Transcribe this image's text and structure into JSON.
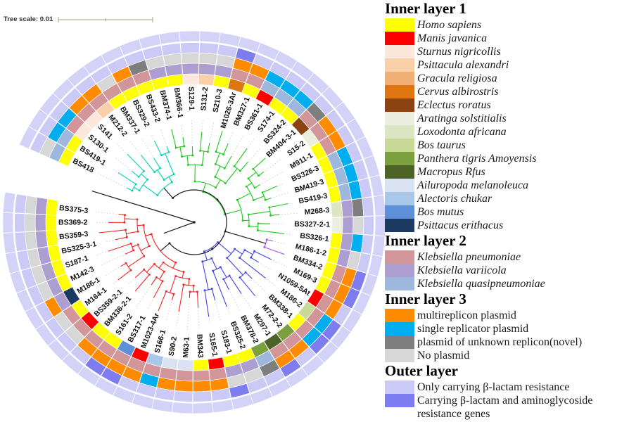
{
  "tree_scale": {
    "label": "Tree scale: 0.01"
  },
  "legend": {
    "sections": [
      {
        "title": "Inner layer 1",
        "italic": true,
        "items": [
          {
            "label": "Homo sapiens",
            "color": "#FFFF00"
          },
          {
            "label": "Manis javanica",
            "color": "#FF0000"
          },
          {
            "label": "Sturnus nigricollis",
            "color": "#FBE8DB"
          },
          {
            "label": "Psittacula alexandri",
            "color": "#FAD0A8"
          },
          {
            "label": "Gracula religiosa",
            "color": "#F1AF76"
          },
          {
            "label": "Cervus albirostris",
            "color": "#DE7511"
          },
          {
            "label": "Eclectus roratus",
            "color": "#8C4311"
          },
          {
            "label": "Aratinga solstitialis",
            "color": "#ECEFDF"
          },
          {
            "label": "Loxodonta africana",
            "color": "#DCE6C3"
          },
          {
            "label": "Bos taurus",
            "color": "#C8D998"
          },
          {
            "label": "Panthera tigris Amoyensis",
            "color": "#7C9F3F"
          },
          {
            "label": "Macropus Rfus",
            "color": "#4C6227"
          },
          {
            "label": "Ailuropoda melanoleuca",
            "color": "#DAE3F1"
          },
          {
            "label": "Alectoris chukar",
            "color": "#A9C7E9"
          },
          {
            "label": "Bos mutus",
            "color": "#5D90D9"
          },
          {
            "label": "Psittacus erithacus",
            "color": "#1D3A63"
          }
        ]
      },
      {
        "title": "Inner layer 2",
        "italic": true,
        "items": [
          {
            "label": "Klebsiella pneumoniae",
            "color": "#D29599"
          },
          {
            "label": "Klebsiella variicola",
            "color": "#AC9ED1"
          },
          {
            "label": "Klebsiella quasipneumoniae",
            "color": "#9EB8DD"
          }
        ]
      },
      {
        "title": "Inner layer 3",
        "italic": false,
        "items": [
          {
            "label": "multireplicon plasmid",
            "color": "#FF8C00"
          },
          {
            "label": "single replicator plasmid",
            "color": "#00AEEF"
          },
          {
            "label": "plasmid of unknown replicon(novel)",
            "color": "#7E7E7E"
          },
          {
            "label": "No plasmid",
            "color": "#D7D7D7"
          }
        ]
      },
      {
        "title": "Outer layer",
        "italic": false,
        "items": [
          {
            "label": "Only carrying β-lactam resistance",
            "color": "#CBCAF7"
          },
          {
            "label": "Carrying β-lactam and aminoglycoside resistance genes",
            "color": "#7D7DF0"
          }
        ]
      }
    ]
  },
  "codes": {
    "hosts": {
      "HS": "Homo sapiens",
      "MJ": "Manis javanica",
      "SN": "Sturnus nigricollis",
      "PA": "Psittacula alexandri",
      "GR": "Gracula religiosa",
      "CA": "Cervus albirostris",
      "ER": "Eclectus roratus",
      "AS": "Aratinga solstitialis",
      "LA": "Loxodonta africana",
      "BT": "Bos taurus",
      "PT": "Panthera tigris Amoyensis",
      "MR": "Macropus Rfus",
      "AM": "Ailuropoda melanoleuca",
      "AC": "Alectoris chukar",
      "BM": "Bos mutus",
      "PE": "Psittacus erithacus"
    },
    "species": {
      "KP": "Klebsiella pneumoniae",
      "KV": "Klebsiella variicola",
      "KQ": "Klebsiella quasipneumoniae"
    },
    "plasmids": {
      "MU": "multireplicon plasmid",
      "SI": "single replicator plasmid",
      "UN": "plasmid of unknown replicon(novel)",
      "NO": "No plasmid"
    },
    "outer": {
      "L": "Only carrying β-lactam resistance",
      "D": "Carrying β-lactam and aminoglycoside resistance genes"
    }
  },
  "tree": {
    "ring5_color": "#D3D3F8",
    "clade_colors": {
      "teal": "#00D2B4",
      "green": "#1EC81E",
      "purple": "#B44FE0",
      "blue": "#4040E8",
      "red": "#F02424",
      "backbone": "#1a1a1a"
    },
    "clades": [
      {
        "name": "teal",
        "from": 0,
        "to": 7
      },
      {
        "name": "green",
        "from": 8,
        "to": 26
      },
      {
        "name": "purple",
        "from": 27,
        "to": 28
      },
      {
        "name": "blue",
        "from": 29,
        "to": 38
      },
      {
        "name": "red",
        "from": 39,
        "to": 55
      }
    ],
    "leaves": [
      {
        "n": "BS418",
        "c": "teal",
        "h": "HS",
        "s": "KQ",
        "p": "NO",
        "o": "L"
      },
      {
        "n": "BS419-1",
        "c": "teal",
        "h": "HS",
        "s": "KQ",
        "p": "SI",
        "o": "L"
      },
      {
        "n": "S130-1",
        "c": "teal",
        "h": "SN",
        "s": "KP",
        "p": "SI",
        "o": "L"
      },
      {
        "n": "S141",
        "c": "teal",
        "h": "SN",
        "s": "KP",
        "p": "MU",
        "o": "L"
      },
      {
        "n": "M212-2",
        "c": "teal",
        "h": "PA",
        "s": "KP",
        "p": "MU",
        "o": "L"
      },
      {
        "n": "BM337-1",
        "c": "teal",
        "h": "HS",
        "s": "KP",
        "p": "NO",
        "o": "L"
      },
      {
        "n": "BS329-2",
        "c": "teal",
        "h": "HS",
        "s": "KP",
        "p": "MU",
        "o": "L"
      },
      {
        "n": "BS433-2",
        "c": "teal",
        "h": "HS",
        "s": "KP",
        "p": "UN",
        "o": "L"
      },
      {
        "n": "BM374-1",
        "c": "green",
        "h": "HS",
        "s": "KV",
        "p": "NO",
        "o": "L"
      },
      {
        "n": "BM366-1",
        "c": "green",
        "h": "HS",
        "s": "KV",
        "p": "NO",
        "o": "L"
      },
      {
        "n": "S129-1",
        "c": "green",
        "h": "SN",
        "s": "KV",
        "p": "NO",
        "o": "L"
      },
      {
        "n": "S131-2",
        "c": "green",
        "h": "PA",
        "s": "KV",
        "p": "NO",
        "o": "L"
      },
      {
        "n": "S210-3",
        "c": "green",
        "h": "HS",
        "s": "KV",
        "p": "NO",
        "o": "L"
      },
      {
        "n": "M1026-3Ar",
        "c": "green",
        "h": "CA",
        "s": "KP",
        "p": "MU",
        "o": "D"
      },
      {
        "n": "BM327-1",
        "c": "green",
        "h": "HS",
        "s": "KP",
        "p": "MU",
        "o": "L"
      },
      {
        "n": "BS361-1",
        "c": "green",
        "h": "MJ",
        "s": "KQ",
        "p": "SI",
        "o": "L"
      },
      {
        "n": "S174-1",
        "c": "green",
        "h": "HS",
        "s": "KQ",
        "p": "SI",
        "o": "L"
      },
      {
        "n": "BS324-2",
        "c": "green",
        "h": "HS",
        "s": "KQ",
        "p": "SI",
        "o": "L"
      },
      {
        "n": "BM404-3-1",
        "c": "green",
        "h": "ER",
        "s": "KP",
        "p": "UN",
        "o": "L"
      },
      {
        "n": "S15-2",
        "c": "green",
        "h": "AS",
        "s": "KP",
        "p": "MU",
        "o": "L"
      },
      {
        "n": "M911-1",
        "c": "green",
        "h": "HS",
        "s": "KP",
        "p": "MU",
        "o": "L"
      },
      {
        "n": "BS326-3",
        "c": "green",
        "h": "HS",
        "s": "KQ",
        "p": "SI",
        "o": "L"
      },
      {
        "n": "BM419-3",
        "c": "green",
        "h": "HS",
        "s": "KQ",
        "p": "SI",
        "o": "L"
      },
      {
        "n": "BS419-3",
        "c": "green",
        "h": "HS",
        "s": "KQ",
        "p": "SI",
        "o": "L"
      },
      {
        "n": "M268-3",
        "c": "green",
        "h": "LA",
        "s": "KV",
        "p": "UN",
        "o": "L"
      },
      {
        "n": "BS327-2-1",
        "c": "green",
        "h": "AS",
        "s": "KV",
        "p": "NO",
        "o": "L"
      },
      {
        "n": "BS326-1",
        "c": "green",
        "h": "HS",
        "s": "KV",
        "p": "SI",
        "o": "L"
      },
      {
        "n": "M186-1-2",
        "c": "purple",
        "h": "HS",
        "s": "KV",
        "p": "NO",
        "o": "L"
      },
      {
        "n": "BM334-2",
        "c": "purple",
        "h": "HS",
        "s": "KP",
        "p": "MU",
        "o": "D"
      },
      {
        "n": "M169-3",
        "c": "blue",
        "h": "HS",
        "s": "KP",
        "p": "MU",
        "o": "D"
      },
      {
        "n": "N1059-5At",
        "c": "blue",
        "h": "MJ",
        "s": "KP",
        "p": "MU",
        "o": "L"
      },
      {
        "n": "M186-2",
        "c": "blue",
        "h": "BT",
        "s": "KP",
        "p": "SI",
        "o": "D"
      },
      {
        "n": "BM338-1",
        "c": "blue",
        "h": "HS",
        "s": "KP",
        "p": "SI",
        "o": "D"
      },
      {
        "n": "M72-2-2",
        "c": "blue",
        "h": "PT",
        "s": "KP",
        "p": "MU",
        "o": "L"
      },
      {
        "n": "M297-1",
        "c": "blue",
        "h": "MR",
        "s": "KP",
        "p": "MU",
        "o": "D"
      },
      {
        "n": "BM378-2",
        "c": "blue",
        "h": "PT",
        "s": "KQ",
        "p": "UN",
        "o": "L"
      },
      {
        "n": "BS325-2",
        "c": "blue",
        "h": "HS",
        "s": "KV",
        "p": "NO",
        "o": "L"
      },
      {
        "n": "S183-1",
        "c": "blue",
        "h": "HS",
        "s": "KV",
        "p": "NO",
        "o": "D"
      },
      {
        "n": "S165-1",
        "c": "blue",
        "h": "MJ",
        "s": "KP",
        "p": "MU",
        "o": "L"
      },
      {
        "n": "BM343",
        "c": "red",
        "h": "HS",
        "s": "KP",
        "p": "MU",
        "o": "L"
      },
      {
        "n": "M63-1",
        "c": "red",
        "h": "AM",
        "s": "KP",
        "p": "MU",
        "o": "L"
      },
      {
        "n": "S90-2",
        "c": "red",
        "h": "AM",
        "s": "KP",
        "p": "MU",
        "o": "L"
      },
      {
        "n": "S166-1",
        "c": "red",
        "h": "AC",
        "s": "KP",
        "p": "SI",
        "o": "L"
      },
      {
        "n": "M1023-4Ar",
        "c": "red",
        "h": "MJ",
        "s": "KP",
        "p": "MU",
        "o": "L"
      },
      {
        "n": "BS317-1",
        "c": "red",
        "h": "BM",
        "s": "KP",
        "p": "MU",
        "o": "D"
      },
      {
        "n": "S161-2",
        "c": "red",
        "h": "HS",
        "s": "KP",
        "p": "MU",
        "o": "D"
      },
      {
        "n": "BM336-2-1",
        "c": "red",
        "h": "HS",
        "s": "KP",
        "p": "MU",
        "o": "L"
      },
      {
        "n": "BS359-2-1",
        "c": "red",
        "h": "MJ",
        "s": "KP",
        "p": "NO",
        "o": "L"
      },
      {
        "n": "M164-1",
        "c": "red",
        "h": "HS",
        "s": "KP",
        "p": "NO",
        "o": "L"
      },
      {
        "n": "M186-1",
        "c": "red",
        "h": "PE",
        "s": "KV",
        "p": "MU",
        "o": "L"
      },
      {
        "n": "M142-3",
        "c": "red",
        "h": "HS",
        "s": "KV",
        "p": "NO",
        "o": "L"
      },
      {
        "n": "S187-1",
        "c": "red",
        "h": "HS",
        "s": "KV",
        "p": "NO",
        "o": "L"
      },
      {
        "n": "BS325-3-1",
        "c": "red",
        "h": "HS",
        "s": "KV",
        "p": "NO",
        "o": "L"
      },
      {
        "n": "BS359-3",
        "c": "red",
        "h": "HS",
        "s": "KV",
        "p": "NO",
        "o": "L"
      },
      {
        "n": "BS369-2",
        "c": "red",
        "h": "HS",
        "s": "KV",
        "p": "NO",
        "o": "L"
      },
      {
        "n": "BS375-3",
        "c": "red",
        "h": "HS",
        "s": "KV",
        "p": "NO",
        "o": "L"
      }
    ]
  }
}
